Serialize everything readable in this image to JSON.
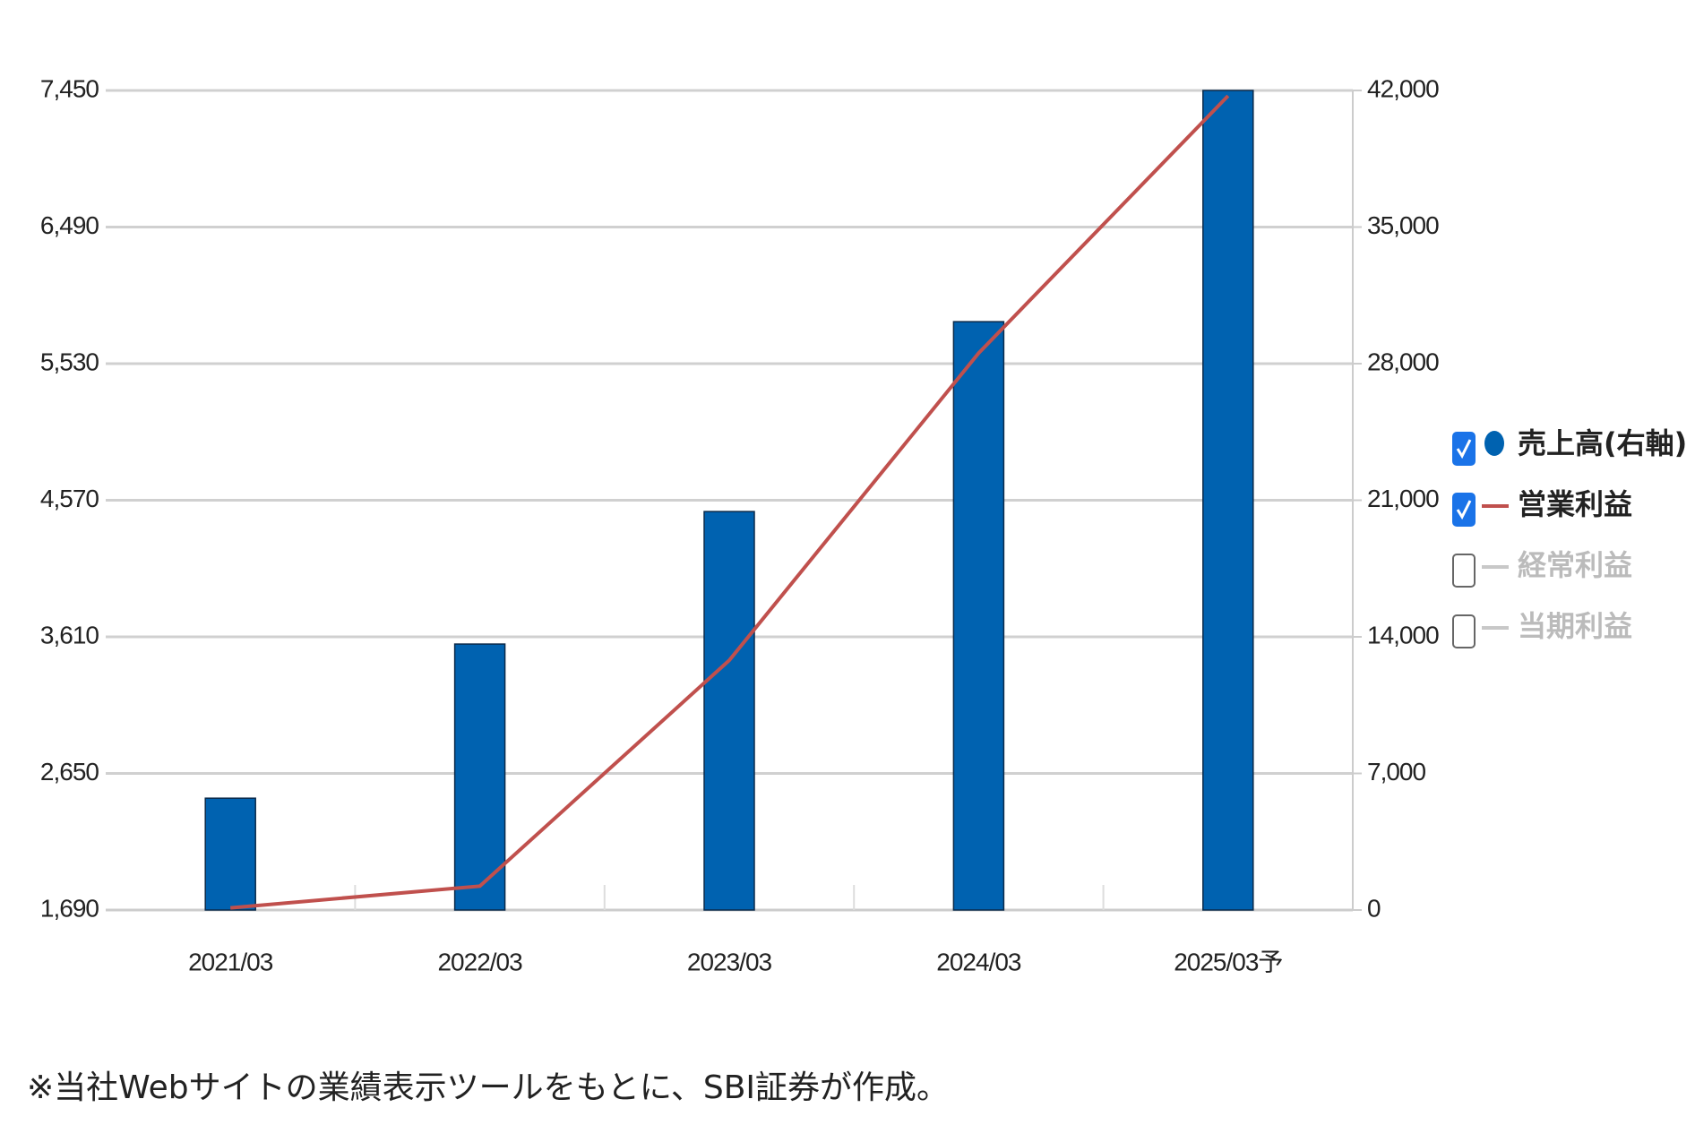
{
  "chart_data": {
    "type": "bar",
    "categories": [
      "2021/03",
      "2022/03",
      "2023/03",
      "2024/03",
      "2025/03予"
    ],
    "series": [
      {
        "name": "売上高(右軸)",
        "type": "bar",
        "axis": "y2",
        "color": "#0062b0",
        "checked": true,
        "values": [
          5730,
          13630,
          20420,
          30150,
          42000
        ]
      },
      {
        "name": "営業利益",
        "type": "line",
        "axis": "y",
        "color": "#c0504d",
        "checked": true,
        "values": [
          1705,
          1858,
          3445,
          5604,
          7412
        ]
      },
      {
        "name": "経常利益",
        "type": "line",
        "color": "#c8c8c8",
        "checked": false
      },
      {
        "name": "当期利益",
        "type": "line",
        "color": "#c8c8c8",
        "checked": false
      }
    ],
    "ylim": [
      1690,
      7450
    ],
    "yticks": [
      {
        "value": 1690,
        "label": "1,690"
      },
      {
        "value": 2650,
        "label": "2,650"
      },
      {
        "value": 3610,
        "label": "3,610"
      },
      {
        "value": 4570,
        "label": "4,570"
      },
      {
        "value": 5530,
        "label": "5,530"
      },
      {
        "value": 6490,
        "label": "6,490"
      },
      {
        "value": 7450,
        "label": "7,450"
      }
    ],
    "y2lim": [
      0,
      42000
    ],
    "y2ticks": [
      0,
      {
        "value": 7000,
        "label": "7,000"
      },
      {
        "value": 14000,
        "label": "14,000"
      },
      {
        "value": 21000,
        "label": "21,000"
      },
      {
        "value": 28000,
        "label": "28,000"
      },
      {
        "value": 35000,
        "label": "35,000"
      },
      {
        "value": 42000,
        "label": "42,000"
      }
    ],
    "grid": true,
    "legend": "right",
    "footnote": "※当社Webサイトの業績表示ツールをもとに、SBI証券が作成。"
  }
}
